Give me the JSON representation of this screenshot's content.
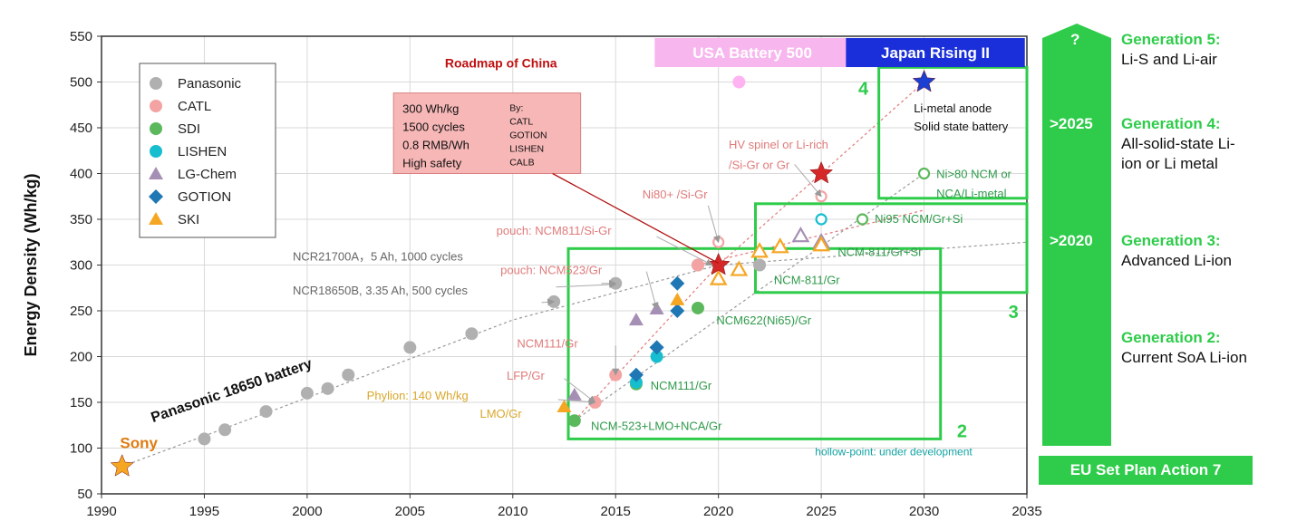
{
  "chart_data": {
    "type": "scatter",
    "ylabel": "Energy Density (Wh/kg)",
    "xlim": [
      1990,
      2035
    ],
    "ylim": [
      50,
      550
    ],
    "xticks": [
      1990,
      1995,
      2000,
      2005,
      2010,
      2015,
      2020,
      2025,
      2030,
      2035
    ],
    "yticks": [
      50,
      100,
      150,
      200,
      250,
      300,
      350,
      400,
      450,
      500,
      550
    ],
    "grid": true,
    "legend_position": "top-left",
    "legend": [
      {
        "name": "Panasonic",
        "marker": "circle",
        "color": "#b0b0b0"
      },
      {
        "name": "CATL",
        "marker": "circle",
        "color": "#f4a3a3"
      },
      {
        "name": "SDI",
        "marker": "circle",
        "color": "#5cb85c"
      },
      {
        "name": "LISHEN",
        "marker": "circle",
        "color": "#17becf"
      },
      {
        "name": "LG-Chem",
        "marker": "triangle",
        "color": "#a68fb5"
      },
      {
        "name": "GOTION",
        "marker": "diamond",
        "color": "#1f77b4"
      },
      {
        "name": "SKI",
        "marker": "triangle",
        "color": "#f5a623"
      }
    ],
    "series": [
      {
        "name": "Panasonic",
        "marker": "circle",
        "color": "#b0b0b0",
        "filled": true,
        "points": [
          [
            1995,
            110
          ],
          [
            1996,
            120
          ],
          [
            1998,
            140
          ],
          [
            2000,
            160
          ],
          [
            2001,
            165
          ],
          [
            2002,
            180
          ],
          [
            2005,
            210
          ],
          [
            2008,
            225
          ],
          [
            2012,
            260
          ],
          [
            2015,
            280
          ],
          [
            2019,
            300
          ],
          [
            2022,
            300
          ]
        ]
      },
      {
        "name": "CATL",
        "marker": "circle",
        "color": "#f4a3a3",
        "filled": true,
        "points": [
          [
            2014,
            150
          ],
          [
            2015,
            180
          ],
          [
            2019,
            300
          ]
        ]
      },
      {
        "name": "CATL planned",
        "marker": "circle",
        "color": "#f4a3a3",
        "filled": false,
        "points": [
          [
            2020,
            325
          ],
          [
            2025,
            375
          ]
        ]
      },
      {
        "name": "SDI",
        "marker": "circle",
        "color": "#5cb85c",
        "filled": true,
        "points": [
          [
            2013,
            130
          ],
          [
            2016,
            170
          ],
          [
            2019,
            253
          ]
        ]
      },
      {
        "name": "SDI planned",
        "marker": "circle",
        "color": "#5cb85c",
        "filled": false,
        "points": [
          [
            2027,
            350
          ],
          [
            2030,
            400
          ]
        ]
      },
      {
        "name": "LISHEN",
        "marker": "circle",
        "color": "#17becf",
        "filled": true,
        "points": [
          [
            2016,
            172
          ],
          [
            2017,
            200
          ]
        ]
      },
      {
        "name": "LISHEN planned",
        "marker": "circle",
        "color": "#17becf",
        "filled": false,
        "points": [
          [
            2025,
            350
          ]
        ]
      },
      {
        "name": "LG-Chem",
        "marker": "triangle",
        "color": "#a68fb5",
        "filled": true,
        "points": [
          [
            2013,
            158
          ],
          [
            2016,
            240
          ],
          [
            2017,
            252
          ]
        ]
      },
      {
        "name": "LG-Chem planned",
        "marker": "triangle",
        "color": "#a68fb5",
        "filled": false,
        "points": [
          [
            2024,
            332
          ],
          [
            2025,
            325
          ]
        ]
      },
      {
        "name": "GOTION",
        "marker": "diamond",
        "color": "#1f77b4",
        "filled": true,
        "points": [
          [
            2016,
            180
          ],
          [
            2017,
            210
          ],
          [
            2018,
            250
          ],
          [
            2018,
            280
          ],
          [
            2020,
            300
          ]
        ]
      },
      {
        "name": "SKI",
        "marker": "triangle",
        "color": "#f5a623",
        "filled": true,
        "points": [
          [
            2012.5,
            145
          ],
          [
            2018,
            262
          ]
        ]
      },
      {
        "name": "SKI planned",
        "marker": "triangle",
        "color": "#f5a623",
        "filled": false,
        "points": [
          [
            2020,
            285
          ],
          [
            2021,
            295
          ],
          [
            2022,
            315
          ],
          [
            2023,
            320
          ],
          [
            2025,
            322
          ]
        ]
      },
      {
        "name": "Sony",
        "marker": "star",
        "color": "#f5a623",
        "filled": true,
        "points": [
          [
            1991,
            80
          ]
        ]
      },
      {
        "name": "China targets",
        "marker": "star",
        "color": "#d62728",
        "filled": true,
        "points": [
          [
            2020,
            300
          ],
          [
            2025,
            400
          ]
        ]
      },
      {
        "name": "Japan target",
        "marker": "star",
        "color": "#1a3fd1",
        "filled": true,
        "points": [
          [
            2030,
            500
          ]
        ]
      },
      {
        "name": "USA target",
        "marker": "circle",
        "color": "#ffb3f0",
        "filled": true,
        "points": [
          [
            2021,
            500
          ]
        ]
      }
    ],
    "trendlines": [
      {
        "color": "#999999",
        "points": [
          [
            1991,
            80
          ],
          [
            2000,
            155
          ],
          [
            2010,
            240
          ],
          [
            2020,
            300
          ],
          [
            2035,
            325
          ]
        ]
      },
      {
        "color": "#e07a7a",
        "points": [
          [
            2013,
            130
          ],
          [
            2020,
            300
          ],
          [
            2025,
            400
          ],
          [
            2030,
            500
          ]
        ]
      },
      {
        "color": "#999999",
        "points": [
          [
            2013,
            130
          ],
          [
            2030,
            400
          ]
        ]
      },
      {
        "color": "#e07a7a",
        "points": [
          [
            2019,
            300
          ],
          [
            2030,
            360
          ]
        ]
      }
    ],
    "boxes": [
      {
        "label": "2",
        "x": [
          2012.7,
          2030.8
        ],
        "y": [
          110,
          318
        ]
      },
      {
        "label": "3",
        "x": [
          2021.8,
          2035
        ],
        "y": [
          270,
          367
        ]
      },
      {
        "label": "4",
        "x": [
          2027.8,
          2035
        ],
        "y": [
          373,
          516
        ]
      }
    ],
    "annotations": [
      {
        "text": "Sony",
        "x": 1990.9,
        "y": 100,
        "color": "#e07b10",
        "bold": true,
        "size": 17
      },
      {
        "text": "Panasonic 18650 battery",
        "x": 1992.5,
        "y": 128,
        "color": "#111111",
        "bold": true,
        "size": 16,
        "rotate": -19
      },
      {
        "text": "NCR18650B, 3.35 Ah, 500 cycles",
        "x": 1999.3,
        "y": 268,
        "color": "#666666",
        "size": 13
      },
      {
        "text": "NCR21700A，5 Ah, 1000 cycles",
        "x": 1999.3,
        "y": 305,
        "color": "#666666",
        "size": 13
      },
      {
        "text": "Phylion: 140 Wh/kg",
        "x": 2002.9,
        "y": 153,
        "color": "#d9a72a",
        "size": 13
      },
      {
        "text": "LMO/Gr",
        "x": 2008.4,
        "y": 133,
        "color": "#d9a72a",
        "size": 13
      },
      {
        "text": "LFP/Gr",
        "x": 2009.7,
        "y": 175,
        "color": "#e07a7a",
        "size": 13
      },
      {
        "text": "NCM111/Gr",
        "x": 2010.2,
        "y": 210,
        "color": "#e07a7a",
        "size": 13
      },
      {
        "text": "pouch: NCM523/Gr",
        "x": 2009.4,
        "y": 290,
        "color": "#e07a7a",
        "size": 13
      },
      {
        "text": "pouch: NCM811/Si-Gr",
        "x": 2009.2,
        "y": 333,
        "color": "#e07a7a",
        "size": 13
      },
      {
        "text": "Ni80+ /Si-Gr",
        "x": 2016.3,
        "y": 373,
        "color": "#e07a7a",
        "size": 13
      },
      {
        "text": "HV spinel or Li-rich",
        "x": 2020.5,
        "y": 427,
        "color": "#e07a7a",
        "size": 13
      },
      {
        "text": "/Si-Gr or Gr",
        "x": 2020.5,
        "y": 405,
        "color": "#e07a7a",
        "size": 13
      },
      {
        "text": "NCM-523+LMO+NCA/Gr",
        "x": 2013.8,
        "y": 120,
        "color": "#2e9a4a",
        "size": 13
      },
      {
        "text": "NCM111/Gr",
        "x": 2016.7,
        "y": 164,
        "color": "#2e9a4a",
        "size": 13
      },
      {
        "text": "NCM622(Ni65)/Gr",
        "x": 2019.9,
        "y": 235,
        "color": "#2e9a4a",
        "size": 13
      },
      {
        "text": "NCM-811/Gr",
        "x": 2022.7,
        "y": 279,
        "color": "#2e9a4a",
        "size": 13
      },
      {
        "text": "NCM-811/Gr+Si",
        "x": 2025.8,
        "y": 310,
        "color": "#2e9a4a",
        "size": 13
      },
      {
        "text": "Ni95 NCM/Gr+Si",
        "x": 2027.6,
        "y": 346,
        "color": "#2e9a4a",
        "size": 13
      },
      {
        "text": "Ni>80 NCM or",
        "x": 2030.6,
        "y": 395,
        "color": "#2e9a4a",
        "size": 13
      },
      {
        "text": "NCA/Li-metal",
        "x": 2030.6,
        "y": 374,
        "color": "#2e9a4a",
        "size": 13
      },
      {
        "text": "Li-metal anode",
        "x": 2029.5,
        "y": 467,
        "color": "#111111",
        "size": 13
      },
      {
        "text": "Solid state battery",
        "x": 2029.5,
        "y": 447,
        "color": "#111111",
        "size": 13
      },
      {
        "text": "hollow-point: under development",
        "x": 2024.7,
        "y": 92,
        "color": "#12a3a3",
        "size": 12
      },
      {
        "text": "Roadmap of China",
        "x": 2006.7,
        "y": 516,
        "color": "#c01010",
        "bold": true,
        "size": 14
      }
    ]
  },
  "china_box": {
    "left_lines": [
      "300 Wh/kg",
      "1500 cycles",
      "0.8 RMB/Wh",
      "High safety"
    ],
    "right_lines": [
      "By:",
      "CATL",
      "GOTION",
      "LISHEN",
      "CALB"
    ],
    "fill": "#f8b7b7"
  },
  "labels": {
    "usa": "USA Battery 500",
    "japan": "Japan Rising II",
    "box2": "2",
    "box3": "3",
    "box4": "4"
  },
  "generations": [
    {
      "title": "Generation 5:",
      "desc": "Li-S and Li-air"
    },
    {
      "title": "Generation 4:",
      "desc": "All-solid-state Li-\nion or Li metal"
    },
    {
      "title": "Generation 3:",
      "desc": "Advanced Li-ion"
    },
    {
      "title": "Generation 2:",
      "desc": "Current SoA Li-ion"
    }
  ],
  "arrow_labels": [
    "?",
    ">2025",
    ">2020"
  ],
  "eu_plan": "EU Set Plan Action 7",
  "colors": {
    "green": "#2ecc4a",
    "grid": "#d9d9d9"
  }
}
